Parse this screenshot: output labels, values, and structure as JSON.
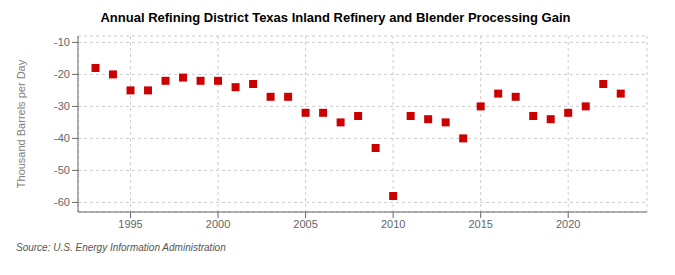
{
  "chart_data": {
    "type": "scatter",
    "title": "Annual Refining District Texas Inland Refinery and Blender Processing Gain",
    "ylabel": "Thousand Barrels per Day",
    "source": "Source: U.S. Energy Information Administration",
    "x": [
      1993,
      1994,
      1995,
      1996,
      1997,
      1998,
      1999,
      2000,
      2001,
      2002,
      2003,
      2004,
      2005,
      2006,
      2007,
      2008,
      2009,
      2010,
      2011,
      2012,
      2013,
      2014,
      2015,
      2016,
      2017,
      2018,
      2019,
      2020,
      2021,
      2022,
      2023
    ],
    "values": [
      -18,
      -20,
      -25,
      -25,
      -22,
      -21,
      -22,
      -22,
      -24,
      -23,
      -27,
      -27,
      -32,
      -32,
      -35,
      -33,
      -43,
      -58,
      -33,
      -34,
      -35,
      -40,
      -30,
      -26,
      -27,
      -33,
      -34,
      -32,
      -30,
      -23,
      -26
    ],
    "color": "#cc0000",
    "marker": "square",
    "xlim": [
      1992.0,
      2024.5
    ],
    "xticks": [
      1995,
      2000,
      2005,
      2010,
      2015,
      2020
    ],
    "ylim": [
      -63,
      -8
    ],
    "yticks": [
      -60,
      -50,
      -40,
      -30,
      -20,
      -10
    ],
    "grid": true
  }
}
